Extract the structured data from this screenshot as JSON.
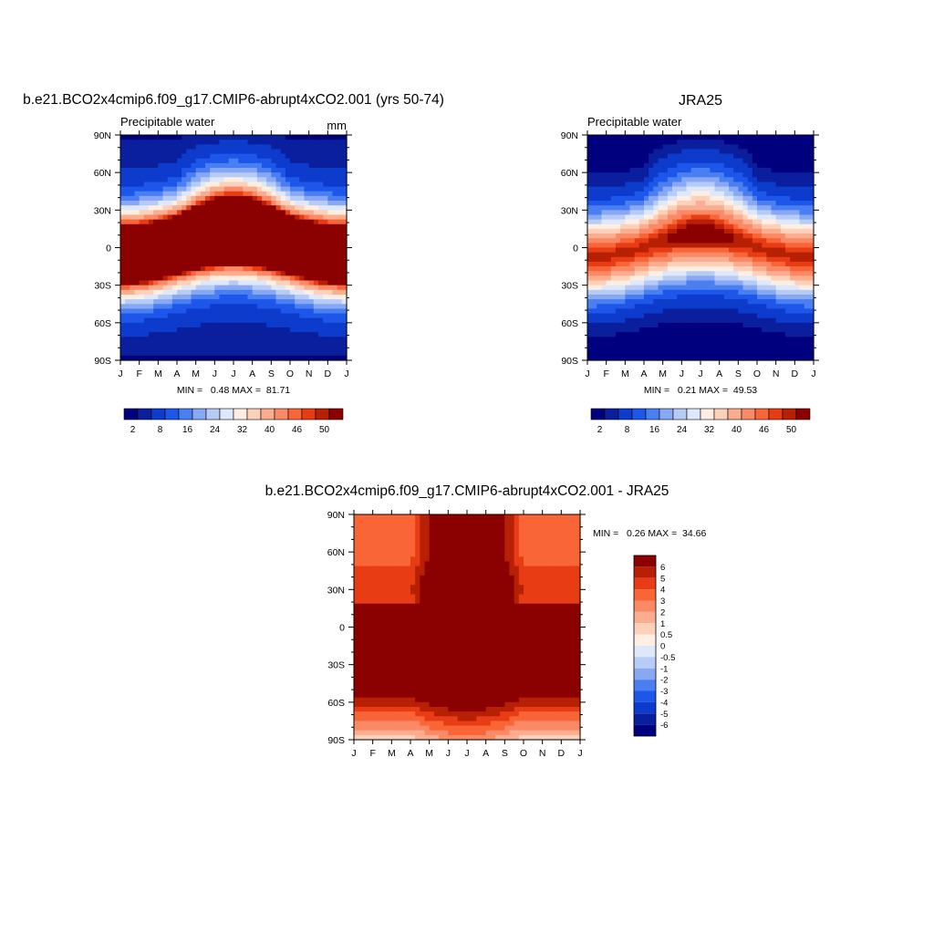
{
  "chart_data": [
    {
      "type": "heatmap",
      "id": "model",
      "title": "b.e21.BCO2x4cmip6.f09_g17.CMIP6-abrupt4xCO2.001 (yrs 50-74)",
      "left_label": "Precipitable water",
      "units": "mm",
      "x_ticks": [
        "J",
        "F",
        "M",
        "A",
        "M",
        "J",
        "J",
        "A",
        "S",
        "O",
        "N",
        "D",
        "J"
      ],
      "y_ticks": [
        "90N",
        "60N",
        "30N",
        "0",
        "30S",
        "60S",
        "90S"
      ],
      "ylim": [
        -90,
        90
      ],
      "min_max": "MIN =   0.48 MAX =  81.71",
      "levels": [
        2,
        4,
        8,
        12,
        16,
        20,
        24,
        28,
        32,
        36,
        40,
        44,
        46,
        48,
        50
      ],
      "level_labels": [
        "2",
        "8",
        "16",
        "24",
        "32",
        "40",
        "46",
        "50"
      ],
      "colors": [
        "#00007f",
        "#0a1f9e",
        "#0d3bcb",
        "#1c57ea",
        "#4a7ff2",
        "#88a8f3",
        "#b6ccf7",
        "#dfe8fb",
        "#ffeee2",
        "#fdd1b9",
        "#fbad8f",
        "#fa8a65",
        "#f96536",
        "#e73c14",
        "#b82005",
        "#8b0000"
      ],
      "fields": {
        "base": 30,
        "amp": 62,
        "width": 33,
        "center_annual": 0,
        "center_seasonal": -16,
        "north_extra_annual": 0,
        "north_extra_seasonal": 18,
        "south_extra_annual": 0,
        "south_extra_seasonal": 0
      }
    },
    {
      "type": "heatmap",
      "id": "obs",
      "title": "JRA25",
      "left_label": "Precipitable water",
      "units": "",
      "x_ticks": [
        "J",
        "F",
        "M",
        "A",
        "M",
        "J",
        "J",
        "A",
        "S",
        "O",
        "N",
        "D",
        "J"
      ],
      "y_ticks": [
        "90N",
        "60N",
        "30N",
        "0",
        "30S",
        "60S",
        "90S"
      ],
      "ylim": [
        -90,
        90
      ],
      "min_max": "MIN =   0.21 MAX =  49.53",
      "levels": [
        2,
        4,
        8,
        12,
        16,
        20,
        24,
        28,
        32,
        36,
        40,
        44,
        46,
        48,
        50
      ],
      "level_labels": [
        "2",
        "8",
        "16",
        "24",
        "32",
        "40",
        "46",
        "50"
      ],
      "colors": [
        "#00007f",
        "#0a1f9e",
        "#0d3bcb",
        "#1c57ea",
        "#4a7ff2",
        "#88a8f3",
        "#b6ccf7",
        "#dfe8fb",
        "#ffeee2",
        "#fdd1b9",
        "#fbad8f",
        "#fa8a65",
        "#f96536",
        "#e73c14",
        "#b82005",
        "#8b0000"
      ],
      "fields": {
        "base": 2,
        "amp": 47,
        "width": 33,
        "center_annual": 0,
        "center_seasonal": -8,
        "north_extra_annual": 0,
        "north_extra_seasonal": 14,
        "south_extra_annual": 0,
        "south_extra_seasonal": 0
      }
    },
    {
      "type": "heatmap",
      "id": "diff",
      "title": "b.e21.BCO2x4cmip6.f09_g17.CMIP6-abrupt4xCO2.001 - JRA25",
      "x_ticks": [
        "J",
        "F",
        "M",
        "A",
        "M",
        "J",
        "J",
        "A",
        "S",
        "O",
        "N",
        "D",
        "J"
      ],
      "y_ticks": [
        "90N",
        "60N",
        "30N",
        "0",
        "30S",
        "60S",
        "90S"
      ],
      "ylim": [
        -90,
        90
      ],
      "min_max": "MIN =   0.26 MAX =  34.66",
      "levels": [
        -6,
        -5,
        -4,
        -3,
        -2,
        -1,
        -0.5,
        0,
        0.5,
        1,
        2,
        3,
        4,
        5,
        6
      ],
      "level_labels": [
        "6",
        "5",
        "4",
        "3",
        "2",
        "1",
        "0.5",
        "0",
        "-0.5",
        "-1",
        "-2",
        "-3",
        "-4",
        "-5",
        "-6"
      ],
      "colors": [
        "#00007f",
        "#0a1f9e",
        "#0d3bcb",
        "#1c57ea",
        "#4a7ff2",
        "#88a8f3",
        "#b6ccf7",
        "#dfe8fb",
        "#ffeee2",
        "#fdd1b9",
        "#fbad8f",
        "#fa8a65",
        "#f96536",
        "#e73c14",
        "#b82005",
        "#8b0000"
      ],
      "fields": {
        "mode": "difference"
      }
    }
  ]
}
